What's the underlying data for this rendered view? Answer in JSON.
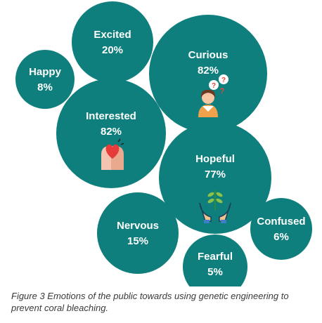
{
  "chart_data": {
    "type": "bubble",
    "title": "",
    "bubble_color": "#0e7f7c",
    "text_color": "#ffffff",
    "series": [
      {
        "label": "Excited",
        "value": 20,
        "display": "20%"
      },
      {
        "label": "Happy",
        "value": 8,
        "display": "8%"
      },
      {
        "label": "Curious",
        "value": 82,
        "display": "82%",
        "icon": "question-person-icon"
      },
      {
        "label": "Interested",
        "value": 82,
        "display": "82%",
        "icon": "heart-head-icon"
      },
      {
        "label": "Hopeful",
        "value": 77,
        "display": "77%",
        "icon": "sprout-hands-icon"
      },
      {
        "label": "Nervous",
        "value": 15,
        "display": "15%"
      },
      {
        "label": "Confused",
        "value": 6,
        "display": "6%"
      },
      {
        "label": "Fearful",
        "value": 5,
        "display": "5%"
      }
    ]
  },
  "caption": "Figure 3 Emotions of the public towards using genetic engineering to prevent coral bleaching."
}
